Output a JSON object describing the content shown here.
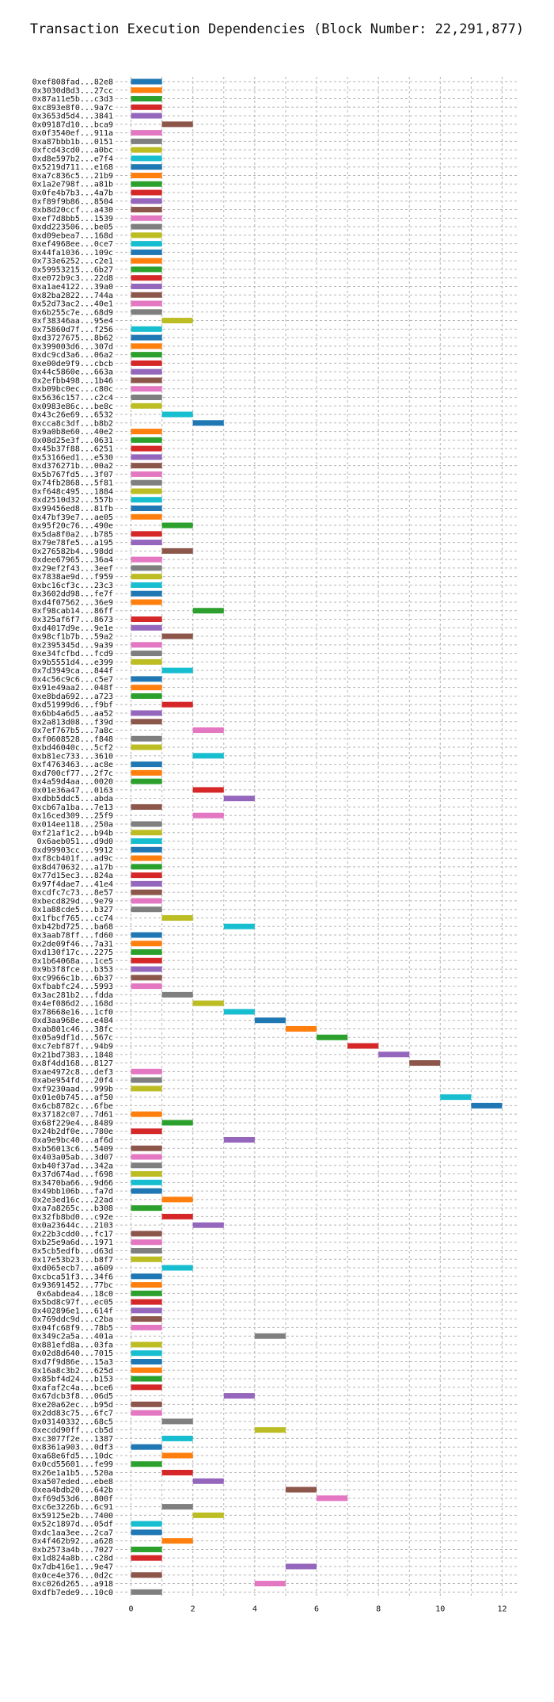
{
  "chart_data": {
    "type": "bar",
    "orientation": "horizontal",
    "title": "Transaction Execution Dependencies (Block Number: 22,291,877)",
    "xlabel": "",
    "ylabel": "",
    "xlim": [
      -0.5,
      12.5
    ],
    "xticks": [
      0,
      2,
      4,
      6,
      8,
      10,
      12
    ],
    "grid": true,
    "color_cycle": [
      "#1f77b4",
      "#ff7f0e",
      "#2ca02c",
      "#d62728",
      "#9467bd",
      "#8c564b",
      "#e377c2",
      "#7f7f7f",
      "#bcbd22",
      "#17becf"
    ],
    "categories": [
      "0xef808fad...82e8",
      "0x3030d8d3...27cc",
      "0x87a11e5b...c3d3",
      "0xc893e8f0...9a7c",
      "0x3653d5d4...3841",
      "0x09187d10...bca9",
      "0x0f3540ef...911a",
      "0xa87bbb1b...0151",
      "0xfcd43cd0...a0bc",
      "0xd8e597b2...e7f4",
      "0x5219d711...e168",
      "0xa7c836c5...21b9",
      "0x1a2e798f...a81b",
      "0x0fe4b7b3...4a7b",
      "0xf89f9b86...8504",
      "0xb8d20ccf...a430",
      "0xef7d8bb5...1539",
      "0xdd223506...be05",
      "0xd09ebea7...168d",
      "0xef4968ee...0ce7",
      "0x44fa1036...109c",
      "0x733e6252...c2e1",
      "0x59953215...6b27",
      "0xe072b9c3...22d8",
      "0xa1ae4122...39a0",
      "0x82ba2822...744a",
      "0x52d73ac2...40e1",
      "0x6b255c7e...68d9",
      "0xf38346aa...95e4",
      "0x75860d7f...f256",
      "0xd3727675...8b62",
      "0x399003d6...307d",
      "0xdc9cd3a6...06a2",
      "0xe00de9f9...cbcb",
      "0x44c5860e...663a",
      "0x2efbb498...1b46",
      "0xb09bc0ec...c80c",
      "0x5636c157...c2c4",
      "0x0983e86c...be8c",
      "0x43c26e69...6532",
      "0xcca8c3df...b8b2",
      "0x9a0b8e60...40e2",
      "0x08d25e3f...0631",
      "0x45b37f88...6251",
      "0x53166ed1...e530",
      "0xd376271b...00a2",
      "0x5b767fd5...3f07",
      "0x74fb2868...5f81",
      "0xf648c495...1884",
      "0xd2510d32...557b",
      "0x99456ed8...81fb",
      "0x47bf39e7...ae05",
      "0x95f20c76...490e",
      "0x5da8f0a2...b785",
      "0x79e78fe5...a195",
      "0x276582b4...98dd",
      "0xdee67965...36a4",
      "0x29ef2f43...3eef",
      "0x7838ae9d...f959",
      "0xbc16cf3c...23c3",
      "0x3602dd98...fe7f",
      "0xd4f07562...36e9",
      "0xf98cab14...86ff",
      "0x325af6f7...8673",
      "0xd4017d9e...9e1e",
      "0x98cf1b7b...59a2",
      "0x2395345d...9a39",
      "0xe34fcfbd...fcd9",
      "0x9b5551d4...e399",
      "0x7d3949ca...844f",
      "0x4c56c9c6...c5e7",
      "0x91e49aa2...048f",
      "0xe8bda692...a723",
      "0xd51999d6...f9bf",
      "0x6bb4a6d5...aa52",
      "0x2a813d08...f39d",
      "0x7ef767b5...7a8c",
      "0xf0608528...f848",
      "0xbd46040c...5cf2",
      "0xb81ec733...3610",
      "0xf4763463...ac8e",
      "0xd700cf77...2f7c",
      "0x4a59d4aa...0020",
      "0x01e36a47...0163",
      "0xdbb5ddc5...abda",
      "0xcb67a1ba...7e13",
      "0x16ced309...25f9",
      "0x014ee118...250a",
      "0xf21af1c2...b94b",
      "0x6aeb051...d9d0",
      "0xd99903cc...9912",
      "0xf8cb401f...ad9c",
      "0x8d470632...a17b",
      "0x77d15ec3...824a",
      "0x97f4dae7...41e4",
      "0xcdfc7c73...8e57",
      "0xbecd829d...9e79",
      "0x1a88cde5...b327",
      "0x1fbcf765...cc74",
      "0xb42bd725...ba68",
      "0x3aab78ff...fd60",
      "0x2de09f46...7a31",
      "0xd130f17c...2275",
      "0x1b64068a...1ce5",
      "0x9b3f8fce...b353",
      "0xc9966c1b...6b37",
      "0xfbabfc24...5993",
      "0x3ac281b2...fdda",
      "0x4ef086d2...168d",
      "0x78668e16...1cf0",
      "0xd3aa968e...e484",
      "0xab801c46...38fc",
      "0x05a9df1d...567c",
      "0xc7ebf87f...94b9",
      "0x21bd7383...1848",
      "0x8f4dd168...8127",
      "0xae4972c8...def3",
      "0xabe954fd...20f4",
      "0xf9230aad...999b",
      "0x01e0b745...af50",
      "0x6cb8782c...6fbe",
      "0x37182c07...7d61",
      "0x68f229e4...8489",
      "0x24b2df0e...780e",
      "0xa9e9bc40...af6d",
      "0xb56013c6...5409",
      "0x403a05ab...3d07",
      "0xb40f37ad...342a",
      "0x37d674ad...f698",
      "0x3470ba66...9d66",
      "0x49bb106b...fa7d",
      "0x2e3ed16c...22ad",
      "0xa7a8265c...b308",
      "0x32fb8bd0...c92e",
      "0x0a23644c...2103",
      "0x22b3cdd0...fc17",
      "0xb25e9a6d...1971",
      "0x5cb5edfb...d63d",
      "0x17e53b23...b8f7",
      "0xd065ecb7...a609",
      "0xcbca51f3...34f6",
      "0x93691452...77bc",
      "0x6abdea4...18c0",
      "0x5bd8c97f...ec05",
      "0x402896e1...614f",
      "0x769ddc9d...c2ba",
      "0x04fc68f9...78b5",
      "0x349c2a5a...401a",
      "0x881efd8a...03fa",
      "0x02d8d640...7015",
      "0xd7f9d86e...15a3",
      "0x16a8c3b2...625d",
      "0x85bf4d24...b153",
      "0xafaf2c4a...bce6",
      "0x67dcb3f8...06d5",
      "0xe20a62ec...b95d",
      "0x2dd83c75...6fc7",
      "0x03140332...68c5",
      "0xecdd90ff...cb5d",
      "0xc3077f2e...1387",
      "0x8361a903...0df3",
      "0xa68e6fd5...10dc",
      "0x0cd55601...fe99",
      "0x26e1a1b5...520a",
      "0xa507eded...ebe8",
      "0xea4bdb20...642b",
      "0xf69d53d6...800f",
      "0xc6e3226b...6c91",
      "0x59125e2b...7400",
      "0x52c1897d...05df",
      "0xdc1aa3ee...2ca7",
      "0x4f462b92...a628",
      "0xb2573a4b...7027",
      "0x1d824a8b...c28d",
      "0x7db416e1...9e47",
      "0x0ce4e376...0d2c",
      "0xc026d265...a918",
      "0xdfb7ede9...10c0"
    ],
    "start": [
      0,
      0,
      0,
      0,
      0,
      1,
      0,
      0,
      0,
      0,
      0,
      0,
      0,
      0,
      0,
      0,
      0,
      0,
      0,
      0,
      0,
      0,
      0,
      0,
      0,
      0,
      0,
      0,
      1,
      0,
      0,
      0,
      0,
      0,
      0,
      0,
      0,
      0,
      0,
      1,
      2,
      0,
      0,
      0,
      0,
      0,
      0,
      0,
      0,
      0,
      0,
      0,
      1,
      0,
      0,
      1,
      0,
      0,
      0,
      0,
      0,
      0,
      2,
      0,
      0,
      1,
      0,
      0,
      0,
      1,
      0,
      0,
      0,
      1,
      0,
      0,
      2,
      0,
      0,
      2,
      0,
      0,
      0,
      2,
      3,
      0,
      2,
      0,
      0,
      0,
      0,
      0,
      0,
      0,
      0,
      0,
      0,
      0,
      1,
      3,
      0,
      0,
      0,
      0,
      0,
      0,
      0,
      1,
      2,
      3,
      4,
      5,
      6,
      7,
      8,
      9,
      0,
      0,
      0,
      10,
      11,
      0,
      1,
      0,
      3,
      0,
      0,
      0,
      0,
      0,
      0,
      1,
      0,
      1,
      2,
      0,
      0,
      0,
      0,
      1,
      0,
      0,
      0,
      0,
      0,
      0,
      0,
      4,
      0,
      0,
      0,
      0,
      0,
      0,
      3,
      0,
      0,
      1,
      4,
      1,
      0,
      1,
      0,
      1,
      2,
      5,
      6,
      1,
      2,
      0,
      0,
      1,
      0,
      0,
      5,
      0,
      4,
      0
    ],
    "end": [
      1,
      1,
      1,
      1,
      1,
      2,
      1,
      1,
      1,
      1,
      1,
      1,
      1,
      1,
      1,
      1,
      1,
      1,
      1,
      1,
      1,
      1,
      1,
      1,
      1,
      1,
      1,
      1,
      2,
      1,
      1,
      1,
      1,
      1,
      1,
      1,
      1,
      1,
      1,
      2,
      3,
      1,
      1,
      1,
      1,
      1,
      1,
      1,
      1,
      1,
      1,
      1,
      2,
      1,
      1,
      2,
      1,
      1,
      1,
      1,
      1,
      1,
      3,
      1,
      1,
      2,
      1,
      1,
      1,
      2,
      1,
      1,
      1,
      2,
      1,
      1,
      3,
      1,
      1,
      3,
      1,
      1,
      1,
      3,
      4,
      1,
      3,
      1,
      1,
      1,
      1,
      1,
      1,
      1,
      1,
      1,
      1,
      1,
      2,
      4,
      1,
      1,
      1,
      1,
      1,
      1,
      1,
      2,
      3,
      4,
      5,
      6,
      7,
      8,
      9,
      10,
      1,
      1,
      1,
      11,
      12,
      1,
      2,
      1,
      4,
      1,
      1,
      1,
      1,
      1,
      1,
      2,
      1,
      2,
      3,
      1,
      1,
      1,
      1,
      2,
      1,
      1,
      1,
      1,
      1,
      1,
      1,
      5,
      1,
      1,
      1,
      1,
      1,
      1,
      4,
      1,
      1,
      2,
      5,
      2,
      1,
      2,
      1,
      2,
      3,
      6,
      7,
      2,
      3,
      1,
      1,
      2,
      1,
      1,
      6,
      1,
      5,
      1
    ]
  }
}
